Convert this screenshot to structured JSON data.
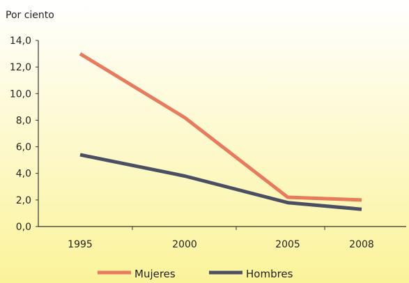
{
  "chart_data": {
    "type": "line",
    "title": "",
    "ylabel": "Por ciento",
    "xlabel": "",
    "categories": [
      "1995",
      "2000",
      "2005",
      "2008"
    ],
    "ylim": [
      0,
      14
    ],
    "yticks": [
      "0,0",
      "2,0",
      "4,0",
      "6,0",
      "8,0",
      "10,0",
      "12,0",
      "14,0"
    ],
    "series": [
      {
        "name": "Mujeres",
        "color": "#e87a5e",
        "values": [
          13.0,
          8.2,
          2.2,
          2.0
        ]
      },
      {
        "name": "Hombres",
        "color": "#4a4f63",
        "values": [
          5.4,
          3.8,
          1.8,
          1.3
        ]
      }
    ],
    "grid": false,
    "legend_position": "bottom",
    "background_color": "#fbf6b0"
  }
}
